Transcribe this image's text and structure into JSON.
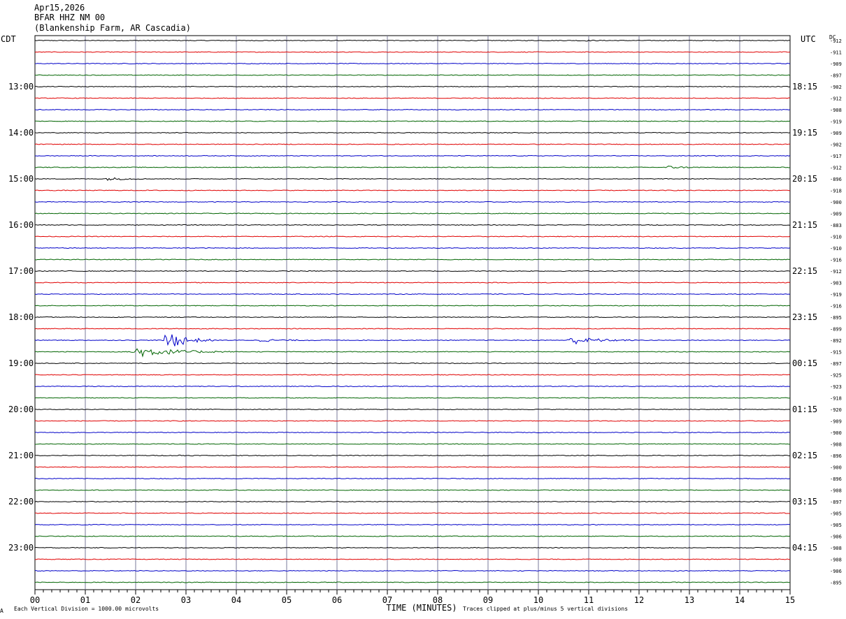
{
  "header": {
    "date": "Apr15,2026",
    "station": "BFAR HHZ NM 00",
    "site": "(Blankenship Farm, AR Cascadia)"
  },
  "left_tz": "CDT",
  "right_tz": "UTC",
  "dc_label": "DC",
  "footer": {
    "scale_note": "Each Vertical Division = 1000.00 microvolts",
    "clip_note": "Traces clipped at plus/minus 5 vertical divisions",
    "corner_mark": "A"
  },
  "colors": {
    "cycle": [
      "#000000",
      "#e00000",
      "#0000c8",
      "#006400"
    ],
    "grid": "#7a7a9a"
  },
  "chart_data": {
    "type": "line",
    "title": "BFAR HHZ NM 00",
    "xlabel": "TIME (MINUTES)",
    "xlim": [
      0,
      15
    ],
    "x_ticks": [
      "00",
      "01",
      "02",
      "03",
      "04",
      "05",
      "06",
      "07",
      "08",
      "09",
      "10",
      "11",
      "12",
      "13",
      "14",
      "15"
    ],
    "left_hour_labels": [
      "13:00",
      "14:00",
      "15:00",
      "16:00",
      "17:00",
      "18:00",
      "19:00",
      "20:00",
      "21:00",
      "22:00",
      "23:00"
    ],
    "right_hour_labels": [
      "18:15",
      "19:15",
      "20:15",
      "21:15",
      "22:15",
      "23:15",
      "00:15",
      "01:15",
      "02:15",
      "03:15",
      "04:15"
    ],
    "first_labeled_row": 4,
    "trace_count": 48,
    "dc_offsets": [
      "-912",
      "-911",
      "-909",
      "-897",
      "-902",
      "-912",
      "-908",
      "-919",
      "-909",
      "-902",
      "-917",
      "-912",
      "-896",
      "-918",
      "-900",
      "-909",
      "-883",
      "-910",
      "-910",
      "-916",
      "-912",
      "-903",
      "-919",
      "-916",
      "-895",
      "-899",
      "-892",
      "-915",
      "-897",
      "-925",
      "-923",
      "-918",
      "-920",
      "-909",
      "-900",
      "-908",
      "-896",
      "-900",
      "-896",
      "-908",
      "-897",
      "-905",
      "-905",
      "-906",
      "-908",
      "-908",
      "-906",
      "-895"
    ],
    "events": [
      {
        "row": 0,
        "minute": 10.9,
        "amplitude": 0.35,
        "duration_min": 0.5
      },
      {
        "row": 11,
        "minute": 12.7,
        "amplitude": 0.6,
        "duration_min": 0.8
      },
      {
        "row": 12,
        "minute": 1.6,
        "amplitude": 0.6,
        "duration_min": 0.9
      },
      {
        "row": 26,
        "minute": 2.8,
        "amplitude": 4.5,
        "duration_min": 1.0
      },
      {
        "row": 26,
        "minute": 4.7,
        "amplitude": 0.55,
        "duration_min": 1.2
      },
      {
        "row": 26,
        "minute": 10.9,
        "amplitude": 1.8,
        "duration_min": 1.3
      },
      {
        "row": 27,
        "minute": 2.4,
        "amplitude": 2.3,
        "duration_min": 2.0
      },
      {
        "row": 36,
        "minute": 2.9,
        "amplitude": 0.25,
        "duration_min": 0.4
      }
    ]
  }
}
